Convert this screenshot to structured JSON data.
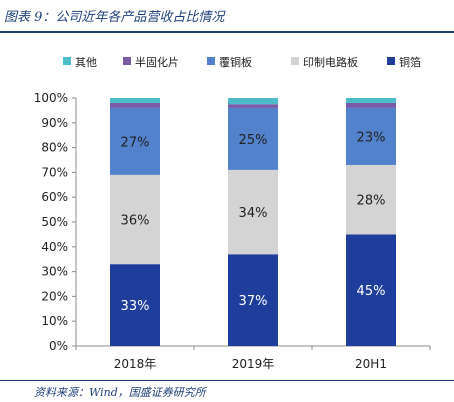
{
  "figure": {
    "title": "图表 9：公司近年各产品营收占比情况",
    "source": "资料来源：Wind，国盛证券研究所"
  },
  "chart_data": {
    "type": "bar",
    "stacked": true,
    "categories": [
      "2018年",
      "2019年",
      "20H1"
    ],
    "series": [
      {
        "name": "铜箔",
        "color": "#1f3e9b",
        "values": [
          33,
          37,
          45
        ],
        "labels": [
          "33%",
          "37%",
          "45%"
        ],
        "label_color": "#ffffff"
      },
      {
        "name": "印制电路板",
        "color": "#d4d4d4",
        "values": [
          36,
          34,
          28
        ],
        "labels": [
          "36%",
          "34%",
          "28%"
        ],
        "label_color": "#222222"
      },
      {
        "name": "覆铜板",
        "color": "#5382cc",
        "values": [
          27,
          25,
          23
        ],
        "labels": [
          "27%",
          "25%",
          "23%"
        ],
        "label_color": "#222222"
      },
      {
        "name": "半固化片",
        "color": "#7a5ba8",
        "values": [
          2.0,
          1.5,
          2.0
        ],
        "labels": [],
        "label_color": "#222222"
      },
      {
        "name": "其他",
        "color": "#4bbcc8",
        "values": [
          2.0,
          2.5,
          2.0
        ],
        "labels": [],
        "label_color": "#222222"
      }
    ],
    "legend_order": [
      "其他",
      "半固化片",
      "覆铜板",
      "印制电路板",
      "铜箔"
    ],
    "legend_position": "top",
    "y_ticks": [
      "0%",
      "10%",
      "20%",
      "30%",
      "40%",
      "50%",
      "60%",
      "70%",
      "80%",
      "90%",
      "100%"
    ],
    "ylim": [
      0,
      100
    ],
    "grid": false
  }
}
